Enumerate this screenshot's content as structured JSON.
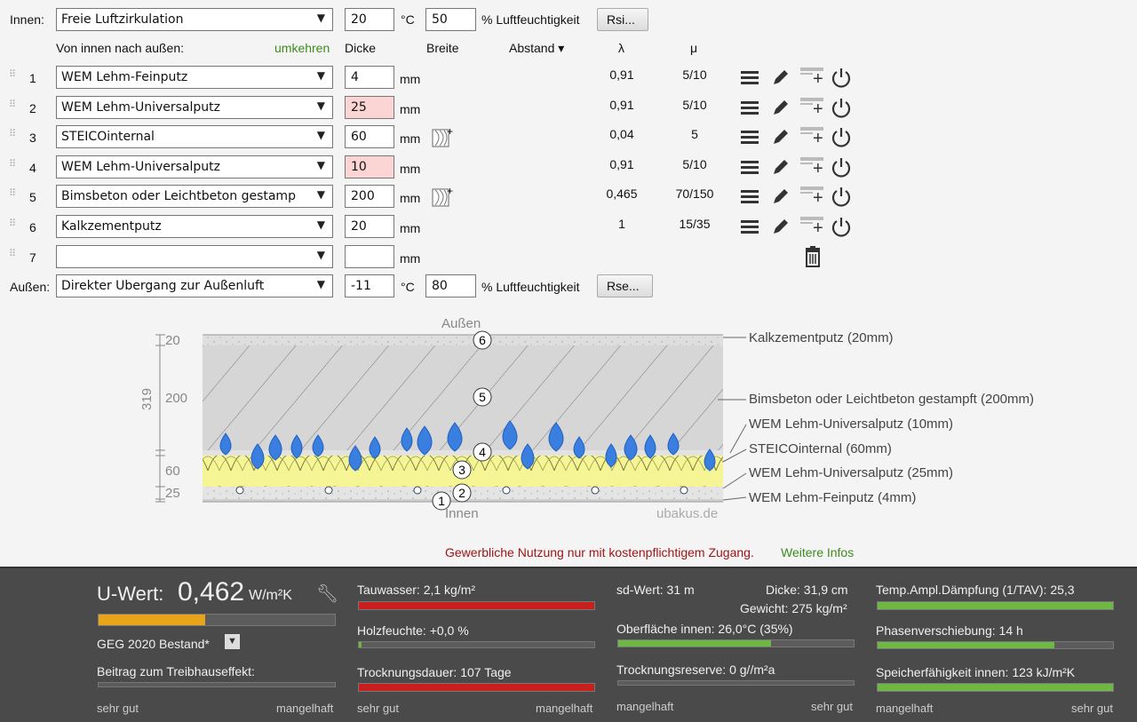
{
  "inner": {
    "label": "Innen:",
    "select_value": "Freie Luftzirkulation",
    "temp": "20",
    "temp_unit": "°C",
    "humidity": "50",
    "humidity_unit": "% Luftfeuchtigkeit",
    "button": "Rsi..."
  },
  "header": {
    "direction": "Von innen nach außen:",
    "reverse": "umkehren",
    "thickness": "Dicke",
    "width": "Breite",
    "spacing": "Abstand ▾",
    "lambda": "λ",
    "mu": "μ"
  },
  "layers": [
    {
      "n": "1",
      "material": "WEM Lehm-Feinputz",
      "thickness": "4",
      "unit": "mm",
      "lambda": "0,91",
      "mu": "5/10"
    },
    {
      "n": "2",
      "material": "WEM Lehm-Universalputz",
      "thickness": "25",
      "unit": "mm",
      "lambda": "0,91",
      "mu": "5/10"
    },
    {
      "n": "3",
      "material": "STEICOinternal",
      "thickness": "60",
      "unit": "mm",
      "lambda": "0,04",
      "mu": "5"
    },
    {
      "n": "4",
      "material": "WEM Lehm-Universalputz",
      "thickness": "10",
      "unit": "mm",
      "lambda": "0,91",
      "mu": "5/10"
    },
    {
      "n": "5",
      "material": "Bimsbeton oder Leichtbeton gestamp",
      "thickness": "200",
      "unit": "mm",
      "lambda": "0,465",
      "mu": "70/150"
    },
    {
      "n": "6",
      "material": "Kalkzementputz",
      "thickness": "20",
      "unit": "mm",
      "lambda": "1",
      "mu": "15/35"
    },
    {
      "n": "7",
      "material": "",
      "thickness": "",
      "unit": "mm",
      "lambda": "",
      "mu": ""
    }
  ],
  "outer": {
    "label": "Außen:",
    "select_value": "Direkter Übergang zur Außenluft",
    "temp": "-11",
    "temp_unit": "°C",
    "humidity": "80",
    "humidity_unit": "% Luftfeuchtigkeit",
    "button": "Rse..."
  },
  "diagram": {
    "top_label": "Außen",
    "bottom_label": "Innen",
    "watermark": "ubakus.de",
    "total": "319",
    "dims": [
      "20",
      "200",
      "60",
      "25"
    ],
    "legend": [
      "Kalkzementputz (20mm)",
      "Bimsbeton oder Leichtbeton gestampft (200mm)",
      "WEM Lehm-Universalputz (10mm)",
      "STEICOinternal (60mm)",
      "WEM Lehm-Universalputz (25mm)",
      "WEM Lehm-Feinputz (4mm)"
    ],
    "circle_labels": [
      "6",
      "5",
      "4",
      "3",
      "2",
      "1"
    ]
  },
  "notice": {
    "text": "Gewerbliche Nutzung nur mit kostenpflichtigem Zugang.",
    "link": "Weitere Infos"
  },
  "results": {
    "u_label": "U-Wert:",
    "u_value": "0,462",
    "u_unit": "W/m²K",
    "u_fill": 0.45,
    "standard": "GEG 2020 Bestand*",
    "greenhouse": "Beitrag zum Treibhauseffekt:",
    "col1_left": "sehr gut",
    "col1_right": "mangelhaft",
    "tauwasser": "Tauwasser: 2,1 kg/m²",
    "holzfeuchte": "Holzfeuchte: +0,0 %",
    "trocknung": "Trocknungsdauer: 107 Tage",
    "col2_left": "sehr gut",
    "col2_right": "mangelhaft",
    "sd": "sd-Wert: 31 m",
    "dicke": "Dicke: 31,9 cm",
    "gewicht": "Gewicht: 275 kg/m²",
    "oberflaeche": "Oberfläche innen: 26,0°C (35%)",
    "reserve": "Trocknungsreserve: 0 g//m²a",
    "col3_left": "mangelhaft",
    "col3_right": "sehr gut",
    "tav": "Temp.Ampl.Dämpfung (1/TAV): 25,3",
    "phase": "Phasenverschiebung: 14 h",
    "speicher": "Speicherfähigkeit innen: 123 kJ/m²K",
    "col4_left": "mangelhaft",
    "col4_right": "sehr gut",
    "oberflaeche_fill": 0.65,
    "phase_fill": 0.75
  }
}
